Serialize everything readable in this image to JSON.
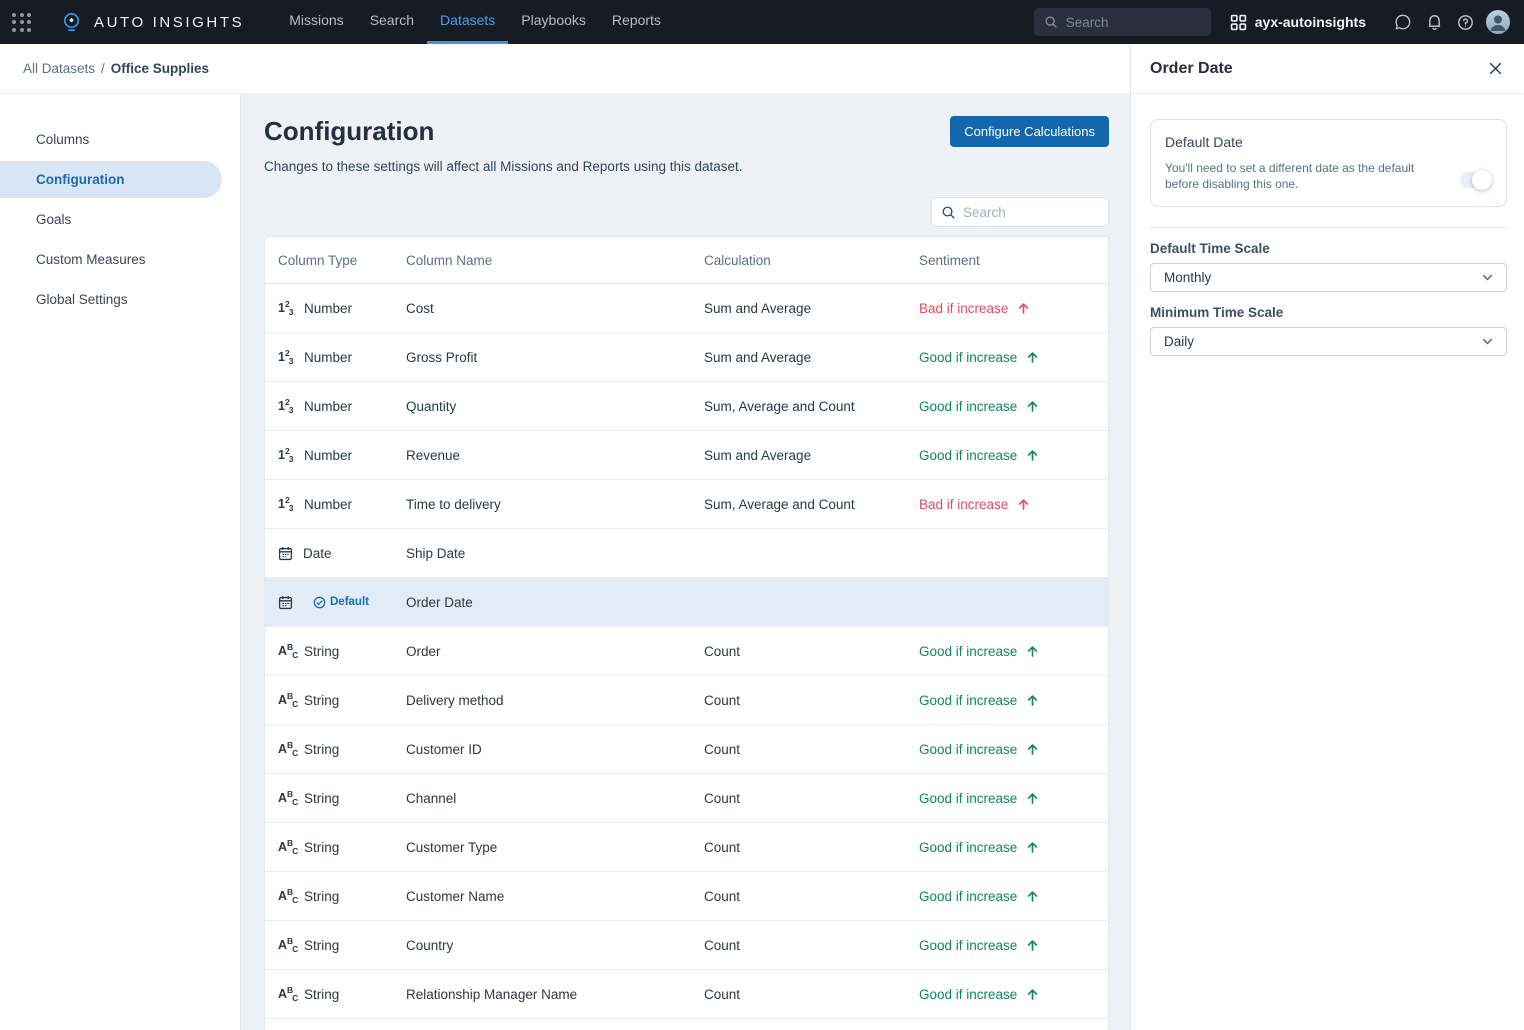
{
  "navbar": {
    "brand": "AUTO INSIGHTS",
    "links": [
      {
        "label": "Missions",
        "active": false
      },
      {
        "label": "Search",
        "active": false
      },
      {
        "label": "Datasets",
        "active": true
      },
      {
        "label": "Playbooks",
        "active": false
      },
      {
        "label": "Reports",
        "active": false
      }
    ],
    "search_placeholder": "Search",
    "workspace": "ayx-autoinsights"
  },
  "breadcrumb": {
    "parent": "All Datasets",
    "separator": "/",
    "current": "Office Supplies"
  },
  "sidebar": {
    "items": [
      {
        "label": "Columns",
        "active": false
      },
      {
        "label": "Configuration",
        "active": true
      },
      {
        "label": "Goals",
        "active": false
      },
      {
        "label": "Custom Measures",
        "active": false
      },
      {
        "label": "Global Settings",
        "active": false
      }
    ]
  },
  "main": {
    "title": "Configuration",
    "subtitle": "Changes to these settings will affect all Missions and Reports using this dataset.",
    "configure_button": "Configure Calculations",
    "search_placeholder": "Search",
    "table": {
      "headers": [
        "Column Type",
        "Column Name",
        "Calculation",
        "Sentiment"
      ],
      "rows": [
        {
          "kind": "number",
          "type": "Number",
          "name": "Cost",
          "calculation": "Sum and Average",
          "sentiment": "Bad if increase",
          "sentiment_kind": "bad"
        },
        {
          "kind": "number",
          "type": "Number",
          "name": "Gross Profit",
          "calculation": "Sum and Average",
          "sentiment": "Good if increase",
          "sentiment_kind": "good"
        },
        {
          "kind": "number",
          "type": "Number",
          "name": "Quantity",
          "calculation": "Sum, Average and Count",
          "sentiment": "Good if increase",
          "sentiment_kind": "good"
        },
        {
          "kind": "number",
          "type": "Number",
          "name": "Revenue",
          "calculation": "Sum and Average",
          "sentiment": "Good if increase",
          "sentiment_kind": "good"
        },
        {
          "kind": "number",
          "type": "Number",
          "name": "Time to delivery",
          "calculation": "Sum, Average and Count",
          "sentiment": "Bad if increase",
          "sentiment_kind": "bad"
        },
        {
          "kind": "date",
          "type": "Date",
          "name": "Ship Date",
          "calculation": "",
          "sentiment": ""
        },
        {
          "kind": "date",
          "type": "Date",
          "name": "Order Date",
          "calculation": "",
          "sentiment": "",
          "badge": "Default",
          "highlighted": true
        },
        {
          "kind": "string",
          "type": "String",
          "name": "Order",
          "calculation": "Count",
          "sentiment": "Good if increase",
          "sentiment_kind": "good"
        },
        {
          "kind": "string",
          "type": "String",
          "name": "Delivery method",
          "calculation": "Count",
          "sentiment": "Good if increase",
          "sentiment_kind": "good"
        },
        {
          "kind": "string",
          "type": "String",
          "name": "Customer ID",
          "calculation": "Count",
          "sentiment": "Good if increase",
          "sentiment_kind": "good"
        },
        {
          "kind": "string",
          "type": "String",
          "name": "Channel",
          "calculation": "Count",
          "sentiment": "Good if increase",
          "sentiment_kind": "good"
        },
        {
          "kind": "string",
          "type": "String",
          "name": "Customer Type",
          "calculation": "Count",
          "sentiment": "Good if increase",
          "sentiment_kind": "good"
        },
        {
          "kind": "string",
          "type": "String",
          "name": "Customer Name",
          "calculation": "Count",
          "sentiment": "Good if increase",
          "sentiment_kind": "good"
        },
        {
          "kind": "string",
          "type": "String",
          "name": "Country",
          "calculation": "Count",
          "sentiment": "Good if increase",
          "sentiment_kind": "good"
        },
        {
          "kind": "string",
          "type": "String",
          "name": "Relationship Manager Name",
          "calculation": "Count",
          "sentiment": "Good if increase",
          "sentiment_kind": "good"
        }
      ]
    }
  },
  "panel": {
    "title": "Order Date",
    "card": {
      "title": "Default Date",
      "description": "You'll need to set a different date as the default before disabling this one.",
      "toggle_on": true
    },
    "fields": [
      {
        "label": "Default Time Scale",
        "value": "Monthly"
      },
      {
        "label": "Minimum Time Scale",
        "value": "Daily"
      }
    ]
  },
  "colors": {
    "navbar_bg": "#161b24",
    "active_link_blue": "#4a9fe8",
    "button_blue": "#1467ad",
    "accent_blue": "#1a6cb4",
    "sidebar_active_bg": "#d8e6f5",
    "good_green": "#0e8662",
    "bad_red": "#e54a5e",
    "highlight_row_bg": "#e3ebf5",
    "content_bg": "#eef1f6"
  }
}
